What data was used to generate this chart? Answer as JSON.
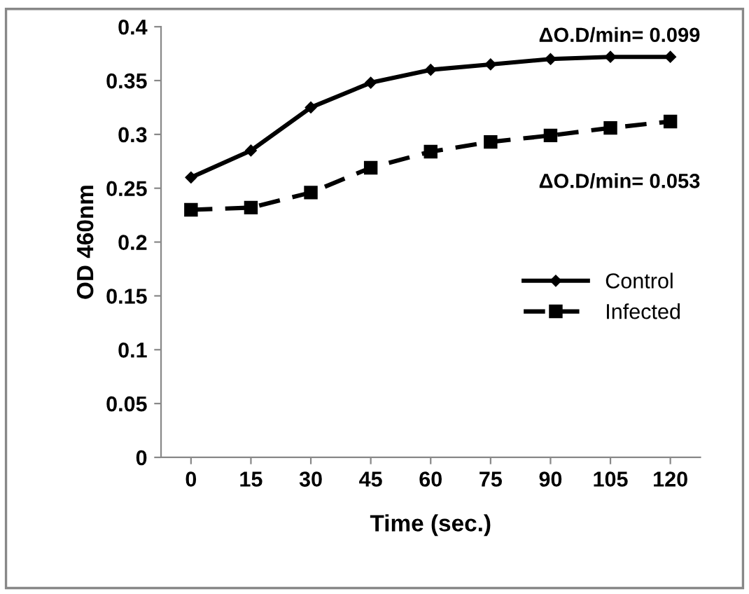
{
  "chart_data": {
    "type": "line",
    "xlabel": "Time (sec.)",
    "ylabel": "OD 460nm",
    "categories": [
      "0",
      "15",
      "30",
      "45",
      "60",
      "75",
      "90",
      "105",
      "120"
    ],
    "series": [
      {
        "name": "Control",
        "color": "#000000",
        "marker": "diamond",
        "line_style": "solid",
        "values": [
          0.26,
          0.285,
          0.325,
          0.348,
          0.36,
          0.365,
          0.37,
          0.372,
          0.372
        ]
      },
      {
        "name": "Infected",
        "color": "#000000",
        "marker": "square",
        "line_style": "dashed",
        "values": [
          0.23,
          0.232,
          0.246,
          0.269,
          0.284,
          0.293,
          0.299,
          0.306,
          0.312
        ]
      }
    ],
    "ylim": [
      0,
      0.4
    ],
    "yticks": [
      0,
      0.05,
      0.1,
      0.15,
      0.2,
      0.25,
      0.3,
      0.35,
      0.4
    ],
    "annotations": [
      "ΔO.D/min= 0.099",
      "ΔO.D/min= 0.053"
    ],
    "grid": false,
    "legend": "right"
  }
}
